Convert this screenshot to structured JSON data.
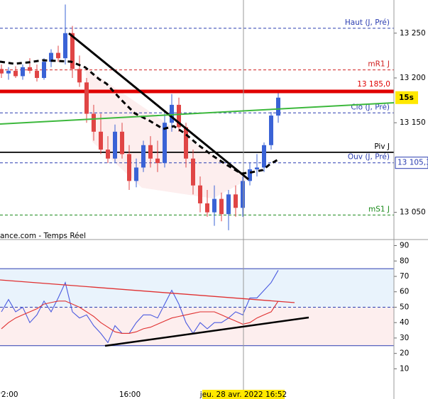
{
  "chart_data": [
    {
      "type": "candlestick",
      "source": "ance.com - Temps Réel",
      "countdown": "15s",
      "up_color": "#3a63d6",
      "down_color": "#e04545",
      "xlim": [
        -0.2,
        55.3
      ],
      "ylim": [
        13022,
        13287
      ],
      "yticks": [
        {
          "value": 13250,
          "label": "13 250"
        },
        {
          "value": 13200,
          "label": "13 200"
        },
        {
          "value": 13150,
          "label": "13 150"
        },
        {
          "value": 13050,
          "label": "13 050"
        }
      ],
      "open": [
        13210,
        13205,
        13208,
        13202,
        13212,
        13208,
        13200,
        13218,
        13228,
        13222,
        13250,
        13210,
        13195,
        13160,
        13140,
        13120,
        13110,
        13140,
        13115,
        13085,
        13100,
        13125,
        13110,
        13105,
        13150,
        13170,
        13145,
        13110,
        13080,
        13060,
        13050,
        13065,
        13048,
        13070,
        13055,
        13085,
        13098,
        13100,
        13125,
        13158
      ],
      "high": [
        13215,
        13212,
        13213,
        13215,
        13222,
        13215,
        13222,
        13232,
        13236,
        13282,
        13258,
        13225,
        13200,
        13170,
        13160,
        13135,
        13148,
        13150,
        13125,
        13110,
        13130,
        13135,
        13130,
        13160,
        13182,
        13178,
        13150,
        13120,
        13090,
        13075,
        13080,
        13072,
        13075,
        13080,
        13090,
        13105,
        13115,
        13128,
        13162,
        13183
      ],
      "low": [
        13200,
        13198,
        13200,
        13198,
        13205,
        13196,
        13198,
        13212,
        13218,
        13215,
        13200,
        13190,
        13150,
        13130,
        13115,
        13105,
        13105,
        13110,
        13075,
        13078,
        13095,
        13100,
        13095,
        13100,
        13140,
        13140,
        13100,
        13070,
        13050,
        13045,
        13035,
        13040,
        13030,
        13045,
        13045,
        13080,
        13090,
        13095,
        13120,
        13150
      ],
      "close": [
        13205,
        13208,
        13202,
        13212,
        13208,
        13200,
        13218,
        13228,
        13222,
        13250,
        13210,
        13195,
        13160,
        13140,
        13120,
        13110,
        13140,
        13115,
        13085,
        13100,
        13125,
        13110,
        13105,
        13150,
        13170,
        13145,
        13110,
        13080,
        13060,
        13050,
        13065,
        13048,
        13070,
        13055,
        13085,
        13098,
        13100,
        13125,
        13158,
        13178
      ],
      "levels": [
        {
          "name": "Haut (J, Pré)",
          "value": 13255.5,
          "color": "#2a3cb0",
          "style": "dashed"
        },
        {
          "name": "mR1 J",
          "value": 13209,
          "color": "#d02020",
          "style": "dashed"
        },
        {
          "value": 13185,
          "label": "13 185,0",
          "color": "#e00000",
          "style": "solid"
        },
        {
          "name": "Clo (J, Pré)",
          "value": 13161,
          "color": "#2a3cb0",
          "style": "dashed"
        },
        {
          "name": "Piv J",
          "value": 13117,
          "color": "#000000",
          "style": "solid"
        },
        {
          "name": "Ouv (J, Pré)",
          "value": 13105.3,
          "label": "13 105,3",
          "color": "#2a3cb0",
          "style": "dashed"
        },
        {
          "name": "mS1 J",
          "value": 13047,
          "color": "#1a8a1a",
          "style": "dashed"
        }
      ]
    },
    {
      "type": "line",
      "xlim": [
        -0.2,
        55.3
      ],
      "ylim": [
        -5,
        93
      ],
      "yticks": [
        10,
        20,
        30,
        40,
        50,
        60,
        70,
        80,
        90
      ],
      "xticks": [
        {
          "value": 0,
          "label": "2:00"
        },
        {
          "value": 18.1,
          "label": "16:00"
        }
      ],
      "cursor": {
        "value": 34.1,
        "label": "jeu. 28 avr. 2022 16:52"
      },
      "bands": [
        75,
        50,
        25
      ],
      "series": [
        {
          "color": "#4a5ae0",
          "values": [
            47,
            55,
            47,
            50,
            40,
            45,
            54,
            47,
            56,
            66,
            47,
            43,
            45,
            38,
            33,
            27,
            38,
            33,
            33,
            40,
            45,
            45,
            43,
            52,
            61,
            52,
            40,
            33,
            40,
            36,
            40,
            40,
            43,
            47,
            45,
            56,
            56,
            61,
            66,
            74
          ]
        },
        {
          "color": "#e03030",
          "values": [
            36,
            40,
            43,
            45,
            47,
            49,
            52,
            53,
            54,
            54,
            52,
            50,
            47,
            44,
            40,
            37,
            34,
            33,
            33,
            34,
            36,
            37,
            39,
            41,
            43,
            44,
            45,
            46,
            47,
            47,
            47,
            45,
            43,
            41,
            39,
            40,
            43,
            45,
            47,
            54
          ]
        }
      ]
    }
  ]
}
